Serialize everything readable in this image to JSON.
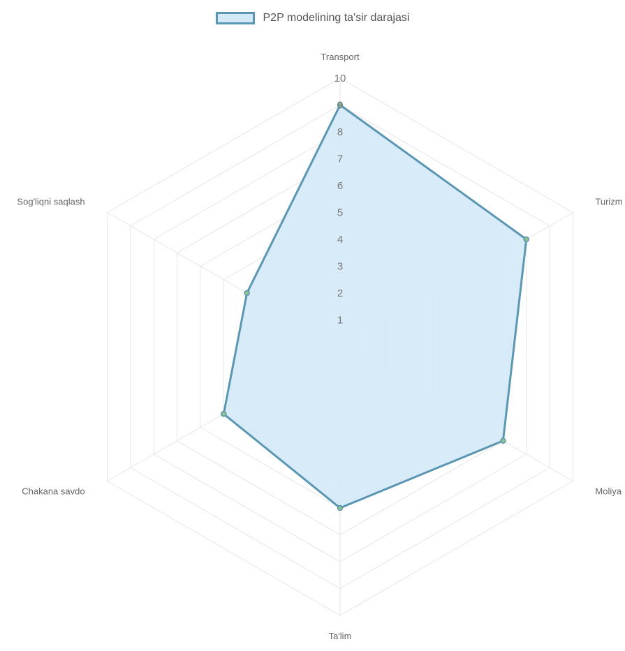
{
  "chart_data": {
    "type": "radar",
    "categories": [
      "Transport",
      "Turizm",
      "Moliya",
      "Ta'lim",
      "Chakana savdo",
      "Sog'liqni saqlash"
    ],
    "series": [
      {
        "name": "P2P modelining ta'sir darajasi",
        "values": [
          9,
          8,
          7,
          6,
          5,
          4
        ]
      }
    ],
    "rlim": [
      0,
      10
    ],
    "ticks": [
      1,
      2,
      3,
      4,
      5,
      6,
      7,
      8,
      9,
      10
    ],
    "legend_position": "top",
    "grid": true,
    "colors": {
      "line": "#5b97b2",
      "fill": "#d4e9f7",
      "grid": "#e6e6e6",
      "point": "#8fbf8f"
    }
  }
}
